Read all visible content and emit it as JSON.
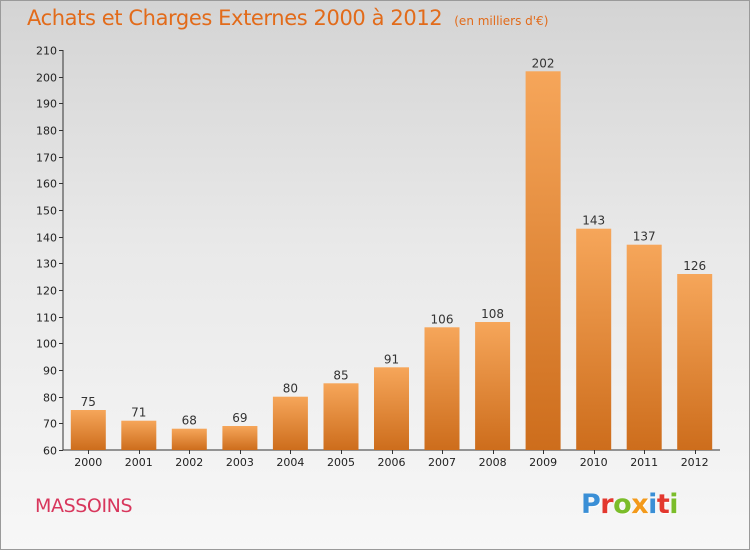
{
  "header": {
    "title": "Achats et Charges Externes 2000 à 2012",
    "unit": "(en milliers d'€)"
  },
  "footer": {
    "commune": "MASSOINS",
    "logo_letters": [
      {
        "char": "P",
        "color": "#3a8fd6"
      },
      {
        "char": "r",
        "color": "#e3382f"
      },
      {
        "char": "o",
        "color": "#7bbd2a"
      },
      {
        "char": "x",
        "color": "#f39a1b"
      },
      {
        "char": "i",
        "color": "#3a8fd6"
      },
      {
        "char": "t",
        "color": "#e3382f"
      },
      {
        "char": "i",
        "color": "#7bbd2a"
      }
    ]
  },
  "colors": {
    "bar_light": "#f6a65a",
    "bar_dark": "#cd6d1c",
    "title": "#e26b1a",
    "commune": "#d8365c"
  },
  "chart_data": {
    "type": "bar",
    "title": "Achats et Charges Externes 2000 à 2012",
    "subtitle": "(en milliers d'€)",
    "categories": [
      "2000",
      "2001",
      "2002",
      "2003",
      "2004",
      "2005",
      "2006",
      "2007",
      "2008",
      "2009",
      "2010",
      "2011",
      "2012"
    ],
    "values": [
      75,
      71,
      68,
      69,
      80,
      85,
      91,
      106,
      108,
      202,
      143,
      137,
      126
    ],
    "ylim": [
      60,
      210
    ],
    "yticks": [
      60,
      70,
      80,
      90,
      100,
      110,
      120,
      130,
      140,
      150,
      160,
      170,
      180,
      190,
      200,
      210
    ],
    "xlabel": "",
    "ylabel": "",
    "grid": false,
    "data_labels": true
  }
}
